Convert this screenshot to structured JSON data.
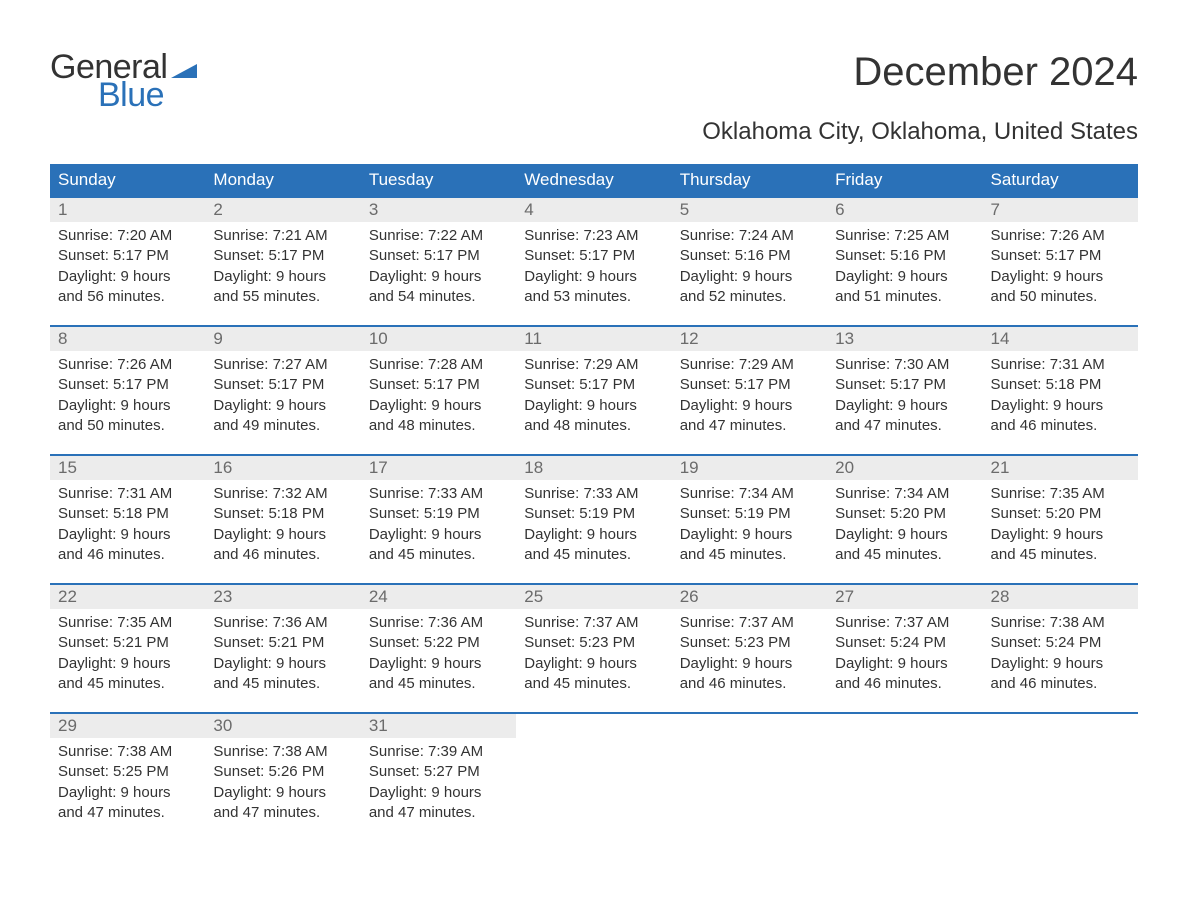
{
  "logo": {
    "line1": "General",
    "line2": "Blue",
    "flag_color": "#2a71b8",
    "text_color_dark": "#333333",
    "text_color_blue": "#2a71b8"
  },
  "title": "December 2024",
  "subtitle": "Oklahoma City, Oklahoma, United States",
  "colors": {
    "header_bg": "#2a71b8",
    "header_text": "#ffffff",
    "daynum_bg": "#ececec",
    "daynum_text": "#6b6b6b",
    "body_text": "#333333",
    "rule": "#2a71b8",
    "page_bg": "#ffffff"
  },
  "typography": {
    "title_fontsize": 40,
    "subtitle_fontsize": 24,
    "weekday_fontsize": 17,
    "daynum_fontsize": 17,
    "body_fontsize": 15,
    "logo_fontsize": 34
  },
  "weekdays": [
    "Sunday",
    "Monday",
    "Tuesday",
    "Wednesday",
    "Thursday",
    "Friday",
    "Saturday"
  ],
  "weeks": [
    [
      {
        "n": "1",
        "sunrise": "7:20 AM",
        "sunset": "5:17 PM",
        "dl1": "9 hours",
        "dl2": "and 56 minutes."
      },
      {
        "n": "2",
        "sunrise": "7:21 AM",
        "sunset": "5:17 PM",
        "dl1": "9 hours",
        "dl2": "and 55 minutes."
      },
      {
        "n": "3",
        "sunrise": "7:22 AM",
        "sunset": "5:17 PM",
        "dl1": "9 hours",
        "dl2": "and 54 minutes."
      },
      {
        "n": "4",
        "sunrise": "7:23 AM",
        "sunset": "5:17 PM",
        "dl1": "9 hours",
        "dl2": "and 53 minutes."
      },
      {
        "n": "5",
        "sunrise": "7:24 AM",
        "sunset": "5:16 PM",
        "dl1": "9 hours",
        "dl2": "and 52 minutes."
      },
      {
        "n": "6",
        "sunrise": "7:25 AM",
        "sunset": "5:16 PM",
        "dl1": "9 hours",
        "dl2": "and 51 minutes."
      },
      {
        "n": "7",
        "sunrise": "7:26 AM",
        "sunset": "5:17 PM",
        "dl1": "9 hours",
        "dl2": "and 50 minutes."
      }
    ],
    [
      {
        "n": "8",
        "sunrise": "7:26 AM",
        "sunset": "5:17 PM",
        "dl1": "9 hours",
        "dl2": "and 50 minutes."
      },
      {
        "n": "9",
        "sunrise": "7:27 AM",
        "sunset": "5:17 PM",
        "dl1": "9 hours",
        "dl2": "and 49 minutes."
      },
      {
        "n": "10",
        "sunrise": "7:28 AM",
        "sunset": "5:17 PM",
        "dl1": "9 hours",
        "dl2": "and 48 minutes."
      },
      {
        "n": "11",
        "sunrise": "7:29 AM",
        "sunset": "5:17 PM",
        "dl1": "9 hours",
        "dl2": "and 48 minutes."
      },
      {
        "n": "12",
        "sunrise": "7:29 AM",
        "sunset": "5:17 PM",
        "dl1": "9 hours",
        "dl2": "and 47 minutes."
      },
      {
        "n": "13",
        "sunrise": "7:30 AM",
        "sunset": "5:17 PM",
        "dl1": "9 hours",
        "dl2": "and 47 minutes."
      },
      {
        "n": "14",
        "sunrise": "7:31 AM",
        "sunset": "5:18 PM",
        "dl1": "9 hours",
        "dl2": "and 46 minutes."
      }
    ],
    [
      {
        "n": "15",
        "sunrise": "7:31 AM",
        "sunset": "5:18 PM",
        "dl1": "9 hours",
        "dl2": "and 46 minutes."
      },
      {
        "n": "16",
        "sunrise": "7:32 AM",
        "sunset": "5:18 PM",
        "dl1": "9 hours",
        "dl2": "and 46 minutes."
      },
      {
        "n": "17",
        "sunrise": "7:33 AM",
        "sunset": "5:19 PM",
        "dl1": "9 hours",
        "dl2": "and 45 minutes."
      },
      {
        "n": "18",
        "sunrise": "7:33 AM",
        "sunset": "5:19 PM",
        "dl1": "9 hours",
        "dl2": "and 45 minutes."
      },
      {
        "n": "19",
        "sunrise": "7:34 AM",
        "sunset": "5:19 PM",
        "dl1": "9 hours",
        "dl2": "and 45 minutes."
      },
      {
        "n": "20",
        "sunrise": "7:34 AM",
        "sunset": "5:20 PM",
        "dl1": "9 hours",
        "dl2": "and 45 minutes."
      },
      {
        "n": "21",
        "sunrise": "7:35 AM",
        "sunset": "5:20 PM",
        "dl1": "9 hours",
        "dl2": "and 45 minutes."
      }
    ],
    [
      {
        "n": "22",
        "sunrise": "7:35 AM",
        "sunset": "5:21 PM",
        "dl1": "9 hours",
        "dl2": "and 45 minutes."
      },
      {
        "n": "23",
        "sunrise": "7:36 AM",
        "sunset": "5:21 PM",
        "dl1": "9 hours",
        "dl2": "and 45 minutes."
      },
      {
        "n": "24",
        "sunrise": "7:36 AM",
        "sunset": "5:22 PM",
        "dl1": "9 hours",
        "dl2": "and 45 minutes."
      },
      {
        "n": "25",
        "sunrise": "7:37 AM",
        "sunset": "5:23 PM",
        "dl1": "9 hours",
        "dl2": "and 45 minutes."
      },
      {
        "n": "26",
        "sunrise": "7:37 AM",
        "sunset": "5:23 PM",
        "dl1": "9 hours",
        "dl2": "and 46 minutes."
      },
      {
        "n": "27",
        "sunrise": "7:37 AM",
        "sunset": "5:24 PM",
        "dl1": "9 hours",
        "dl2": "and 46 minutes."
      },
      {
        "n": "28",
        "sunrise": "7:38 AM",
        "sunset": "5:24 PM",
        "dl1": "9 hours",
        "dl2": "and 46 minutes."
      }
    ],
    [
      {
        "n": "29",
        "sunrise": "7:38 AM",
        "sunset": "5:25 PM",
        "dl1": "9 hours",
        "dl2": "and 47 minutes."
      },
      {
        "n": "30",
        "sunrise": "7:38 AM",
        "sunset": "5:26 PM",
        "dl1": "9 hours",
        "dl2": "and 47 minutes."
      },
      {
        "n": "31",
        "sunrise": "7:39 AM",
        "sunset": "5:27 PM",
        "dl1": "9 hours",
        "dl2": "and 47 minutes."
      },
      {
        "empty": true
      },
      {
        "empty": true
      },
      {
        "empty": true
      },
      {
        "empty": true
      }
    ]
  ],
  "labels": {
    "sunrise": "Sunrise: ",
    "sunset": "Sunset: ",
    "daylight": "Daylight: "
  }
}
